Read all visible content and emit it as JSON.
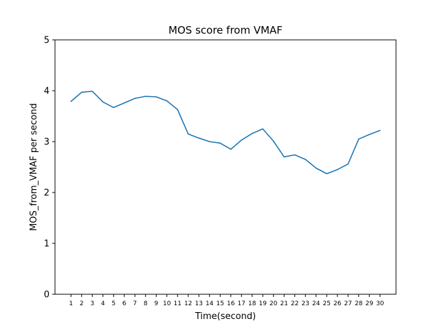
{
  "chart_data": {
    "type": "line",
    "title": "MOS score from VMAF",
    "xlabel": "Time(second)",
    "ylabel": "MOS_from_VMAF per second",
    "x": [
      1,
      2,
      3,
      4,
      5,
      6,
      7,
      8,
      9,
      10,
      11,
      12,
      13,
      14,
      15,
      16,
      17,
      18,
      19,
      20,
      21,
      22,
      23,
      24,
      25,
      26,
      27,
      28,
      29,
      30
    ],
    "series": [
      {
        "values": [
          3.79,
          3.97,
          3.99,
          3.78,
          3.67,
          3.76,
          3.85,
          3.89,
          3.88,
          3.8,
          3.63,
          3.15,
          3.07,
          3.0,
          2.97,
          2.85,
          3.03,
          3.16,
          3.25,
          3.01,
          2.7,
          2.74,
          2.65,
          2.48,
          2.37,
          2.45,
          2.56,
          3.05,
          3.14,
          3.22
        ],
        "color": "#1f77b4"
      }
    ],
    "xlim": [
      -0.5,
      31.5
    ],
    "ylim": [
      0,
      5
    ],
    "yticks": [
      "0",
      "1",
      "2",
      "3",
      "4",
      "5"
    ],
    "xticks": [
      "1",
      "2",
      "3",
      "4",
      "5",
      "6",
      "7",
      "8",
      "9",
      "10",
      "11",
      "12",
      "13",
      "14",
      "15",
      "16",
      "17",
      "18",
      "19",
      "20",
      "21",
      "22",
      "23",
      "24",
      "25",
      "26",
      "27",
      "28",
      "29",
      "30"
    ],
    "grid": false
  }
}
